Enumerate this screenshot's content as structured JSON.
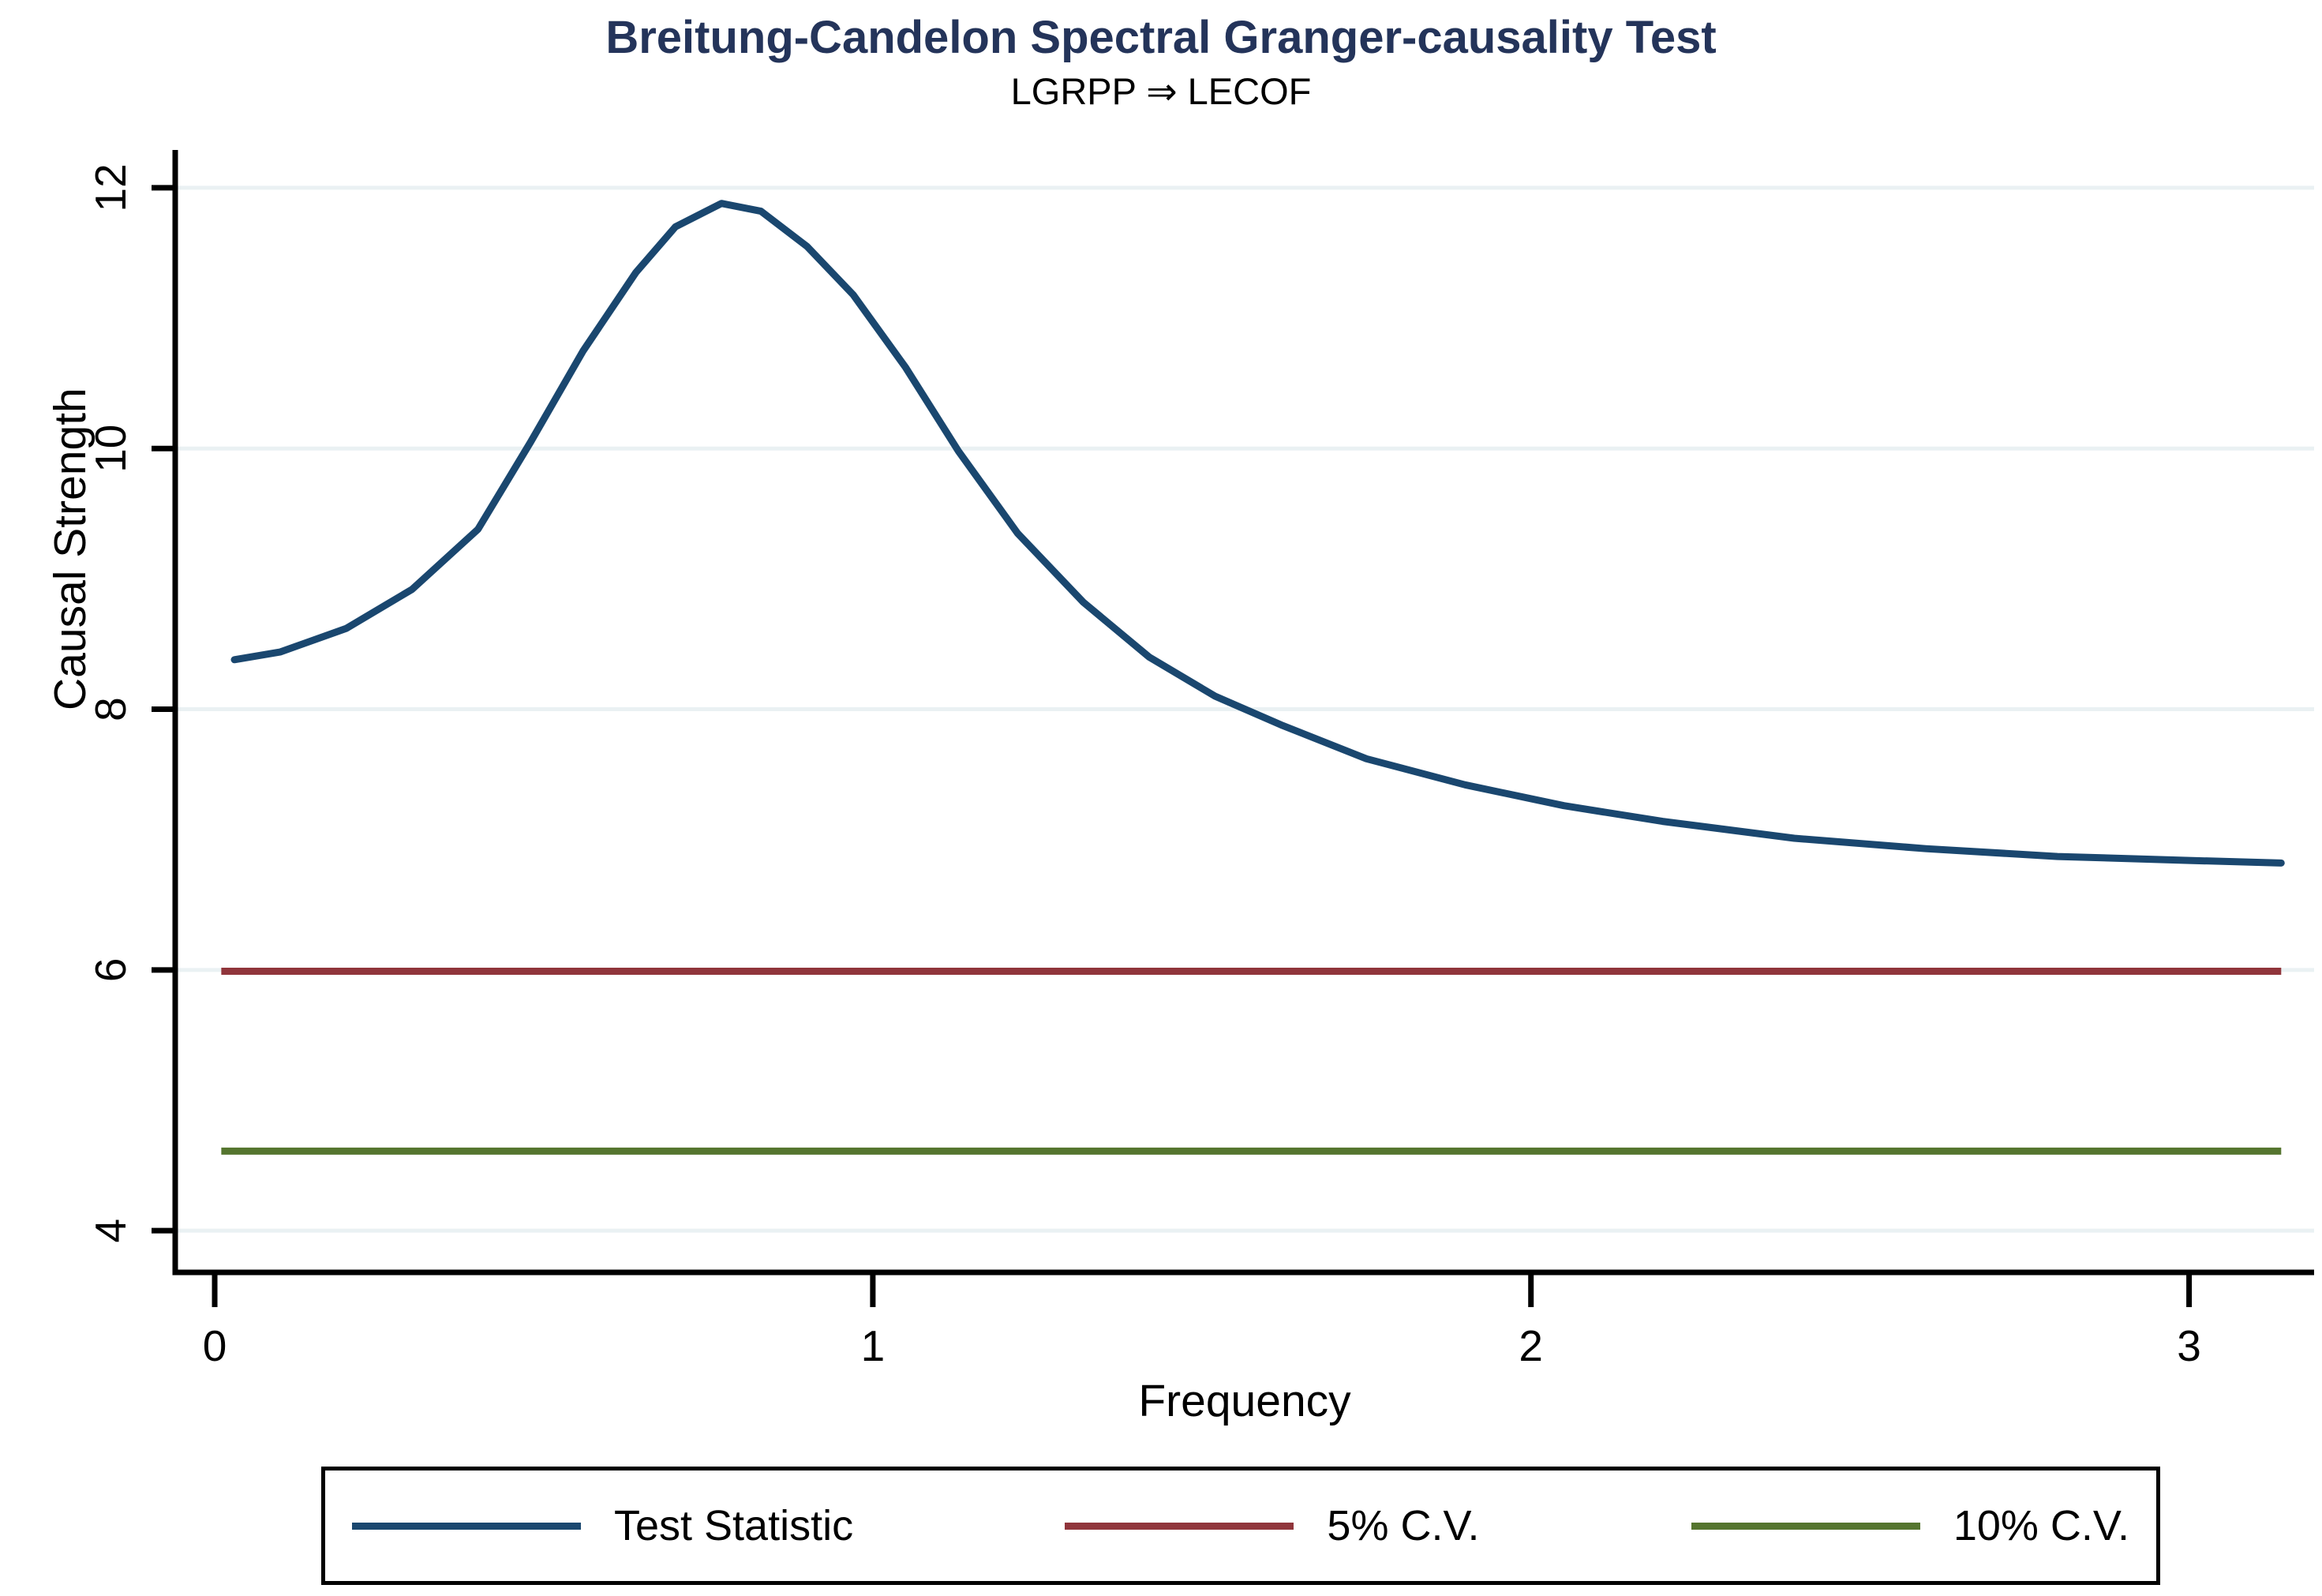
{
  "title": "Breitung-Candelon Spectral Granger-causality Test",
  "subtitle": "LGRPP ⇒ LECOF",
  "colors": {
    "title": "#24345a",
    "text": "#000000",
    "axis": "#000000",
    "gridline": "#eaf1f3",
    "background": "#ffffff",
    "test_statistic": "#1a476f",
    "cv5": "#90353b",
    "cv10": "#55752f"
  },
  "legend": {
    "items": [
      {
        "label": "Test Statistic",
        "color": "#1a476f"
      },
      {
        "label": "5% C.V.",
        "color": "#90353b"
      },
      {
        "label": "10% C.V.",
        "color": "#55752f"
      }
    ]
  },
  "chart_data": {
    "type": "line",
    "title": "Breitung-Candelon Spectral Granger-causality Test",
    "subtitle": "LGRPP ⇒ LECOF",
    "xlabel": "Frequency",
    "ylabel": "Causal Strength",
    "xlim": [
      -0.06,
      3.19
    ],
    "ylim": [
      3.68,
      12.29
    ],
    "xticks": [
      0,
      1,
      2,
      3
    ],
    "yticks": [
      4,
      6,
      8,
      10,
      12
    ],
    "grid": "horizontal-only",
    "legend_position": "bottom-box",
    "series": [
      {
        "name": "Test Statistic",
        "style": "curve",
        "color": "#1a476f",
        "x": [
          0.03,
          0.1,
          0.2,
          0.3,
          0.4,
          0.48,
          0.56,
          0.64,
          0.7,
          0.77,
          0.83,
          0.9,
          0.97,
          1.05,
          1.13,
          1.22,
          1.32,
          1.42,
          1.52,
          1.62,
          1.75,
          1.9,
          2.05,
          2.2,
          2.4,
          2.6,
          2.8,
          3.0,
          3.14
        ],
        "y": [
          8.38,
          8.44,
          8.62,
          8.92,
          9.38,
          10.05,
          10.75,
          11.35,
          11.7,
          11.88,
          11.82,
          11.55,
          11.18,
          10.62,
          9.98,
          9.35,
          8.82,
          8.4,
          8.1,
          7.88,
          7.62,
          7.42,
          7.26,
          7.14,
          7.01,
          6.93,
          6.87,
          6.84,
          6.82
        ]
      },
      {
        "name": "5% C.V.",
        "style": "hline",
        "color": "#90353b",
        "y_constant": 5.99,
        "x_start": 0.01,
        "x_end": 3.14
      },
      {
        "name": "10% C.V.",
        "style": "hline",
        "color": "#55752f",
        "y_constant": 4.61,
        "x_start": 0.01,
        "x_end": 3.14
      }
    ]
  }
}
